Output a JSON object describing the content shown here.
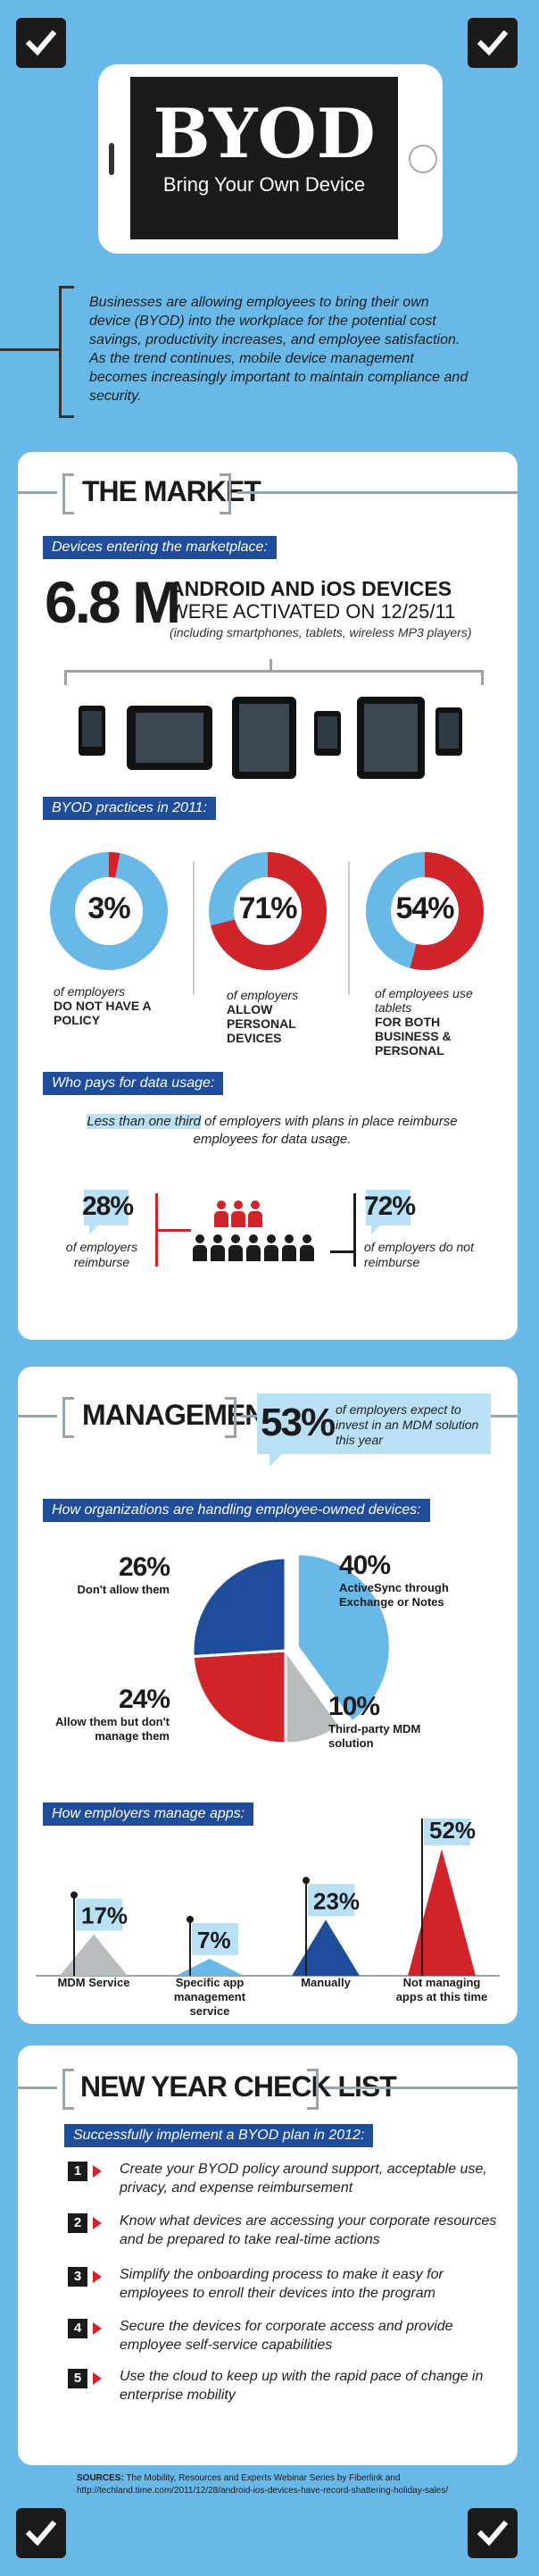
{
  "header": {
    "title": "BYOD",
    "subtitle": "Bring Your Own Device",
    "intro": "Businesses are allowing employees to bring their own device (BYOD) into the workplace for the potential cost savings, productivity increases, and employee satisfaction.  As the trend continues, mobile device management becomes increasingly important to maintain compliance and security."
  },
  "market": {
    "title": "THE MARKET",
    "devices_head": "Devices entering the marketplace:",
    "big_number": "6.8 M",
    "headline_line1": "ANDROID AND iOS DEVICES",
    "headline_line2": "WERE ACTIVATED ON 12/25/11",
    "headline_note": "(including smartphones, tablets, wireless MP3 players)",
    "practices_head": "BYOD practices in 2011:",
    "donuts": [
      {
        "pct": "3%",
        "value": 3,
        "line1": "of employers",
        "bold": "DO NOT HAVE A POLICY",
        "color": "#d1232a"
      },
      {
        "pct": "71%",
        "value": 71,
        "line1": "of employers",
        "bold": "ALLOW PERSONAL DEVICES",
        "color": "#d1232a"
      },
      {
        "pct": "54%",
        "value": 54,
        "line1": "of employees use tablets",
        "bold": "FOR BOTH BUSINESS & PERSONAL",
        "color": "#d1232a"
      }
    ],
    "pays_head": "Who pays for data usage:",
    "pays_lead_hl": "Less than one third",
    "pays_lead_rest": " of employers with plans in place reimburse employees for data usage.",
    "reimburse_pct": "28%",
    "reimburse_text": "of employers reimburse",
    "noreimburse_pct": "72%",
    "noreimburse_text": "of employers do not reimburse"
  },
  "management": {
    "title": "MANAGEMENT",
    "mdm_pct": "53%",
    "mdm_text": "of employers expect to invest in an MDM solution this year",
    "handling_head": "How organizations are handling employee-owned devices:",
    "apps_head": "How employers manage apps:"
  },
  "checklist": {
    "title": "NEW YEAR CHECK LIST",
    "head": "Successfully implement a BYOD plan in 2012:",
    "steps": [
      {
        "n": "1",
        "text": "Create your BYOD policy around support, acceptable use, privacy, and expense reimbursement"
      },
      {
        "n": "2",
        "text": "Know what devices are accessing your corporate resources and be prepared to take real-time actions"
      },
      {
        "n": "3",
        "text": "Simplify the onboarding process to make it easy for employees to enroll their devices into the program"
      },
      {
        "n": "4",
        "text": "Secure the devices for corporate access and provide employee self-service capabilities"
      },
      {
        "n": "5",
        "text": "Use the cloud to keep up with the rapid pace of change in enterprise mobility"
      }
    ]
  },
  "sources": {
    "label": "SOURCES:",
    "text": "The Mobility, Resources and Experts Webinar Series by Fiberlink and http://techland.time.com/2011/12/28/android-ios-devices-have-record-shattering-holiday-sales/"
  },
  "chart_data": [
    {
      "type": "pie",
      "title": "How organizations are handling employee-owned devices:",
      "categories": [
        "ActiveSync through Exchange or Notes",
        "Third-party MDM solution",
        "Allow them but don't manage them",
        "Don't allow them"
      ],
      "values": [
        40,
        10,
        24,
        26
      ],
      "labels": [
        "40%",
        "10%",
        "24%",
        "26%"
      ],
      "colors": [
        "#69b9e8",
        "#b7bcbf",
        "#d1232a",
        "#1f4c9b"
      ]
    },
    {
      "type": "bar",
      "title": "How employers manage apps:",
      "categories": [
        "MDM Service",
        "Specific app management service",
        "Manually",
        "Not managing apps at this time"
      ],
      "values": [
        17,
        7,
        23,
        52
      ],
      "labels": [
        "17%",
        "7%",
        "23%",
        "52%"
      ],
      "colors": [
        "#b7bcbf",
        "#69b9e8",
        "#1f4c9b",
        "#d1232a"
      ]
    }
  ]
}
